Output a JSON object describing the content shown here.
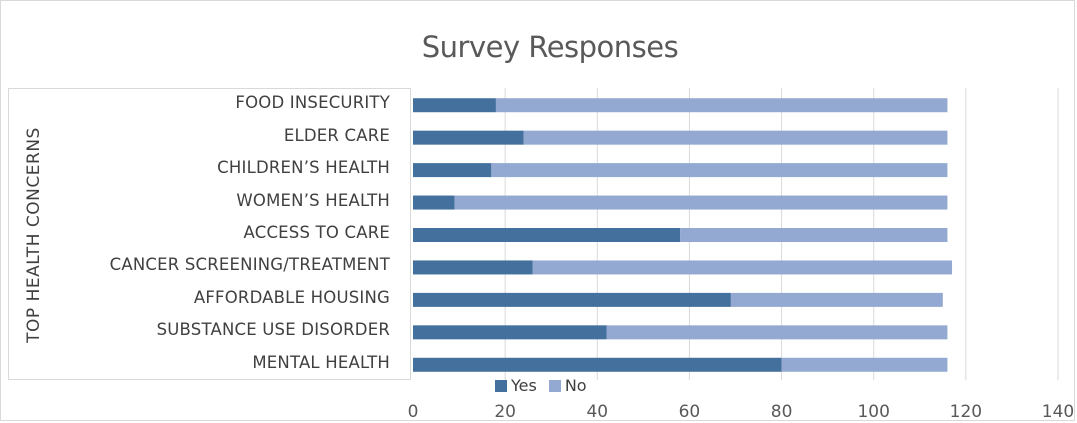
{
  "chart_data": {
    "type": "bar",
    "orientation": "horizontal",
    "stacked": true,
    "title": "Survey Responses",
    "ylabel": "TOP HEALTH CONCERNS",
    "xlabel": "",
    "categories": [
      "FOOD INSECURITY",
      "ELDER CARE",
      "CHILDREN’S HEALTH",
      "WOMEN’S HEALTH",
      "ACCESS TO CARE",
      "CANCER SCREENING/TREATMENT",
      "AFFORDABLE HOUSING",
      "SUBSTANCE USE DISORDER",
      "MENTAL HEALTH"
    ],
    "series": [
      {
        "name": "Yes",
        "color": "#44709d",
        "values": [
          18,
          24,
          17,
          9,
          58,
          26,
          69,
          42,
          80
        ]
      },
      {
        "name": "No",
        "color": "#93a9d1",
        "values": [
          98,
          92,
          99,
          107,
          58,
          91,
          46,
          74,
          36
        ]
      }
    ],
    "xlim": [
      0,
      140
    ],
    "xticks": [
      "0",
      "20",
      "40",
      "60",
      "80",
      "100",
      "120",
      "140"
    ],
    "grid": true,
    "legend_position": "bottom"
  }
}
